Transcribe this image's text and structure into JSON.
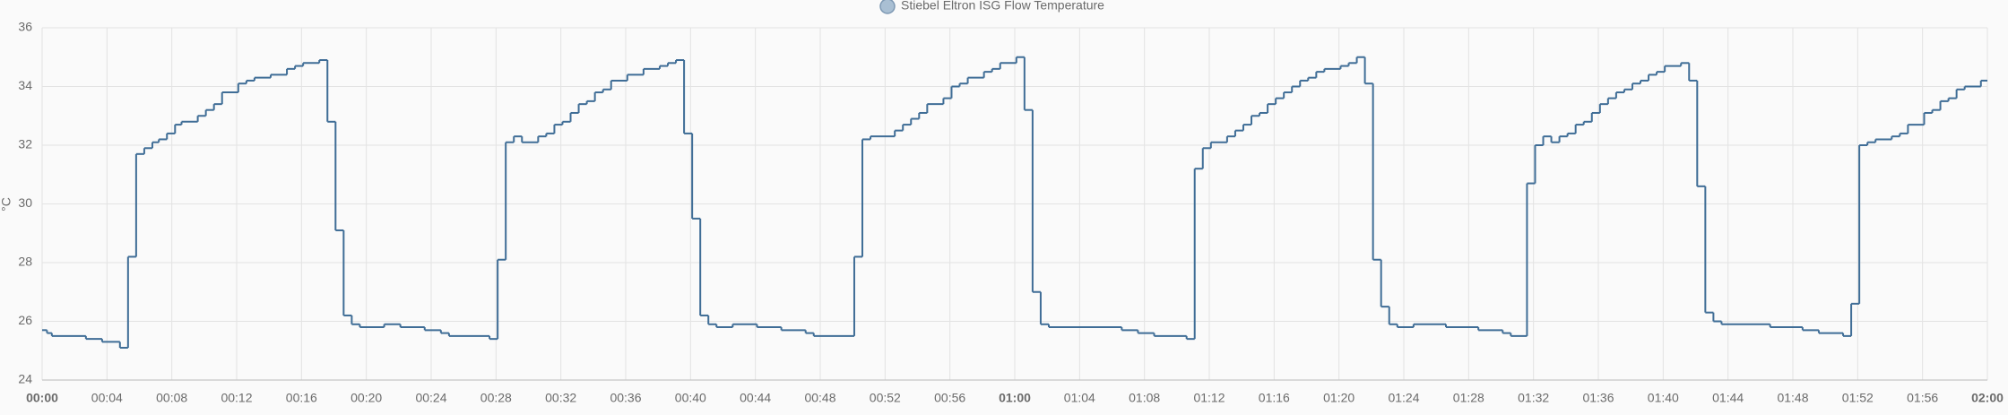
{
  "chart_data": {
    "type": "step-line",
    "y_label": "°C",
    "series": [
      {
        "name": "Stiebel Eltron ISG Flow Temperature",
        "color": "#3f6d96",
        "x": [
          0,
          0.3,
          0.6,
          2.7,
          3.7,
          4.8,
          5.3,
          5.8,
          6.3,
          6.8,
          7.2,
          7.7,
          8.2,
          8.6,
          9.6,
          10.1,
          10.6,
          11.1,
          12.1,
          12.6,
          13.1,
          14.1,
          15.1,
          15.6,
          16.1,
          17.1,
          17.6,
          18.1,
          18.6,
          19.1,
          19.6,
          21.1,
          22.1,
          23.6,
          24.6,
          25.1,
          27.6,
          28.1,
          28.6,
          29.1,
          29.6,
          30.6,
          31.1,
          31.6,
          32.1,
          32.6,
          33.1,
          33.6,
          34.1,
          34.6,
          35.1,
          36.1,
          37.1,
          38.1,
          38.6,
          39.1,
          39.6,
          40.1,
          40.6,
          41.1,
          41.6,
          42.6,
          44.1,
          45.6,
          47.1,
          47.6,
          50.1,
          50.6,
          51.1,
          52.6,
          53.1,
          53.6,
          54.1,
          54.6,
          55.6,
          56.1,
          56.6,
          57.1,
          58.1,
          58.6,
          59.1,
          60.1,
          60.6,
          61.1,
          61.6,
          62.1,
          66.6,
          67.6,
          68.6,
          70.6,
          71.1,
          71.6,
          72.1,
          73.1,
          73.6,
          74.1,
          74.6,
          75.1,
          75.6,
          76.1,
          76.6,
          77.1,
          77.6,
          78.1,
          78.6,
          79.1,
          80.1,
          80.6,
          81.1,
          81.6,
          82.1,
          82.6,
          83.1,
          83.6,
          84.6,
          86.6,
          88.6,
          90.1,
          90.6,
          91.6,
          92.1,
          92.6,
          93.1,
          93.6,
          94.1,
          94.6,
          95.1,
          95.6,
          96.1,
          96.6,
          97.1,
          97.6,
          98.1,
          98.6,
          99.1,
          99.6,
          100.1,
          101.1,
          101.6,
          102.1,
          102.6,
          103.1,
          103.6,
          106.6,
          108.6,
          109.6,
          111.1,
          111.6,
          112.1,
          112.6,
          113.1,
          114.1,
          114.6,
          115.1,
          116.1,
          116.6,
          117.1,
          117.6,
          118.1,
          118.6,
          119.6
        ],
        "values": [
          25.7,
          25.6,
          25.5,
          25.4,
          25.3,
          25.1,
          28.2,
          31.7,
          31.9,
          32.1,
          32.2,
          32.4,
          32.7,
          32.8,
          33.0,
          33.2,
          33.4,
          33.8,
          34.1,
          34.2,
          34.3,
          34.4,
          34.6,
          34.7,
          34.8,
          34.9,
          32.8,
          29.1,
          26.2,
          25.9,
          25.8,
          25.9,
          25.8,
          25.7,
          25.6,
          25.5,
          25.4,
          28.1,
          32.1,
          32.3,
          32.1,
          32.3,
          32.4,
          32.7,
          32.8,
          33.1,
          33.4,
          33.5,
          33.8,
          33.9,
          34.2,
          34.4,
          34.6,
          34.7,
          34.8,
          34.9,
          32.4,
          29.5,
          26.2,
          25.9,
          25.8,
          25.9,
          25.8,
          25.7,
          25.6,
          25.5,
          28.2,
          32.2,
          32.3,
          32.5,
          32.7,
          32.9,
          33.1,
          33.4,
          33.6,
          34.0,
          34.1,
          34.3,
          34.5,
          34.6,
          34.8,
          35.0,
          33.2,
          27.0,
          25.9,
          25.8,
          25.7,
          25.6,
          25.5,
          25.4,
          31.2,
          31.9,
          32.1,
          32.3,
          32.5,
          32.7,
          33.0,
          33.1,
          33.4,
          33.6,
          33.8,
          34.0,
          34.2,
          34.3,
          34.5,
          34.6,
          34.7,
          34.8,
          35.0,
          34.1,
          28.1,
          26.5,
          25.9,
          25.8,
          25.9,
          25.8,
          25.7,
          25.6,
          25.5,
          30.7,
          32.0,
          32.3,
          32.1,
          32.3,
          32.4,
          32.7,
          32.8,
          33.1,
          33.4,
          33.6,
          33.8,
          33.9,
          34.1,
          34.2,
          34.4,
          34.5,
          34.7,
          34.8,
          34.2,
          30.6,
          26.3,
          26.0,
          25.9,
          25.8,
          25.7,
          25.6,
          25.5,
          26.6,
          32.0,
          32.1,
          32.2,
          32.3,
          32.4,
          32.7,
          33.1,
          33.2,
          33.5,
          33.6,
          33.9,
          34.0,
          34.2
        ]
      }
    ],
    "xlim": [
      0,
      120
    ],
    "xticks": [
      {
        "value": 0,
        "label": "00:00"
      },
      {
        "value": 4,
        "label": "00:04"
      },
      {
        "value": 8,
        "label": "00:08"
      },
      {
        "value": 12,
        "label": "00:12"
      },
      {
        "value": 16,
        "label": "00:16"
      },
      {
        "value": 20,
        "label": "00:20"
      },
      {
        "value": 24,
        "label": "00:24"
      },
      {
        "value": 28,
        "label": "00:28"
      },
      {
        "value": 32,
        "label": "00:32"
      },
      {
        "value": 36,
        "label": "00:36"
      },
      {
        "value": 40,
        "label": "00:40"
      },
      {
        "value": 44,
        "label": "00:44"
      },
      {
        "value": 48,
        "label": "00:48"
      },
      {
        "value": 52,
        "label": "00:52"
      },
      {
        "value": 56,
        "label": "00:56"
      },
      {
        "value": 60,
        "label": "01:00"
      },
      {
        "value": 64,
        "label": "01:04"
      },
      {
        "value": 68,
        "label": "01:08"
      },
      {
        "value": 72,
        "label": "01:12"
      },
      {
        "value": 76,
        "label": "01:16"
      },
      {
        "value": 80,
        "label": "01:20"
      },
      {
        "value": 84,
        "label": "01:24"
      },
      {
        "value": 88,
        "label": "01:28"
      },
      {
        "value": 92,
        "label": "01:32"
      },
      {
        "value": 96,
        "label": "01:36"
      },
      {
        "value": 100,
        "label": "01:40"
      },
      {
        "value": 104,
        "label": "01:44"
      },
      {
        "value": 108,
        "label": "01:48"
      },
      {
        "value": 112,
        "label": "01:52"
      },
      {
        "value": 116,
        "label": "01:56"
      },
      {
        "value": 120,
        "label": "02:00"
      }
    ],
    "ylim": [
      24,
      36
    ],
    "yticks": [
      24,
      26,
      28,
      30,
      32,
      34,
      36
    ],
    "grid": true
  }
}
